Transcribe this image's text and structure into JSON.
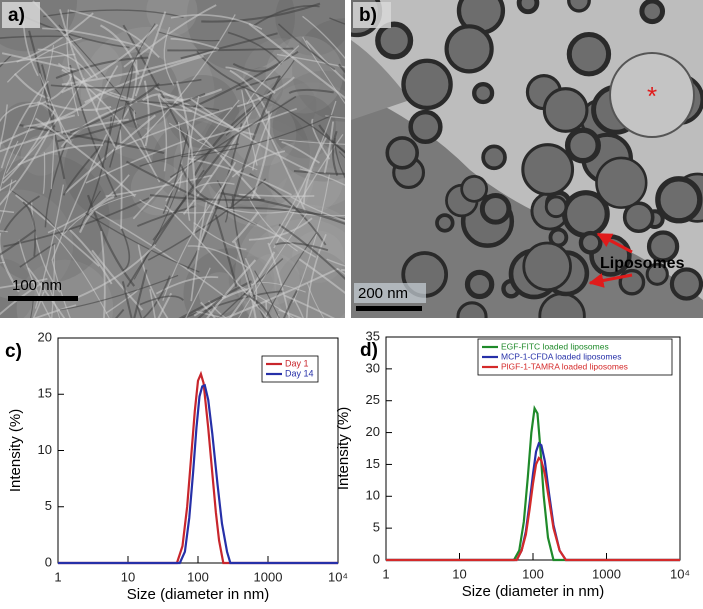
{
  "images": [
    {
      "label": "a)",
      "scale_bar": "100 nm"
    },
    {
      "label": "b)",
      "scale_bar": "200 nm",
      "annotation": "Liposomes",
      "marker": "*"
    }
  ],
  "chart_data": [
    {
      "type": "line",
      "panel_label": "c)",
      "xlabel": "Size (diameter in nm)",
      "ylabel": "Intensity (%)",
      "xscale": "log",
      "xlim": [
        1,
        10000
      ],
      "xticks": [
        1,
        10,
        100,
        1000,
        {
          "value": 10000,
          "label": "10⁴"
        }
      ],
      "ylim": [
        0,
        20
      ],
      "yticks": [
        0,
        5,
        10,
        15,
        20
      ],
      "legend": "upper right",
      "series": [
        {
          "name": "Day 1",
          "color": "#c8262c",
          "x": [
            1,
            50,
            60,
            70,
            80,
            90,
            100,
            110,
            120,
            140,
            160,
            180,
            200,
            230,
            10000
          ],
          "values": [
            0,
            0,
            1.5,
            5,
            9.5,
            13.5,
            16.2,
            16.8,
            16,
            12,
            8,
            4.5,
            2,
            0,
            0
          ]
        },
        {
          "name": "Day 14",
          "color": "#2630a8",
          "x": [
            1,
            55,
            65,
            75,
            85,
            95,
            105,
            115,
            125,
            140,
            160,
            190,
            220,
            260,
            290,
            10000
          ],
          "values": [
            0,
            0,
            1,
            4,
            8,
            12,
            14.8,
            15.7,
            15.8,
            14.5,
            11.5,
            7,
            3.5,
            1,
            0,
            0
          ]
        }
      ]
    },
    {
      "type": "line",
      "panel_label": "d)",
      "xlabel": "Size (diameter in nm)",
      "ylabel": "Intensity (%)",
      "xscale": "log",
      "xlim": [
        1,
        10000
      ],
      "xticks": [
        1,
        10,
        100,
        1000,
        {
          "value": 10000,
          "label": "10⁴"
        }
      ],
      "ylim": [
        0,
        35
      ],
      "yticks": [
        0,
        5,
        10,
        15,
        20,
        25,
        30,
        35
      ],
      "legend": "upper center",
      "series": [
        {
          "name": "EGF-FITC loaded liposomes",
          "color": "#1f8a2a",
          "x": [
            1,
            55,
            65,
            75,
            85,
            95,
            105,
            115,
            125,
            140,
            160,
            190,
            10000
          ],
          "values": [
            0,
            0,
            1.5,
            6,
            13,
            20,
            23.8,
            23,
            18,
            10,
            3.5,
            0,
            0
          ]
        },
        {
          "name": "MCP-1-CFDA loaded liposomes",
          "color": "#2630a8",
          "x": [
            1,
            60,
            70,
            80,
            90,
            100,
            110,
            120,
            130,
            145,
            165,
            190,
            230,
            280,
            10000
          ],
          "values": [
            0,
            0,
            1.5,
            4.5,
            9,
            13.5,
            17,
            18.3,
            18,
            15.5,
            10.5,
            5.5,
            1.5,
            0,
            0
          ]
        },
        {
          "name": "PlGF-1-TAMRA loaded liposomes",
          "color": "#d42a2a",
          "x": [
            1,
            60,
            70,
            80,
            90,
            100,
            110,
            120,
            130,
            145,
            165,
            190,
            230,
            280,
            10000
          ],
          "values": [
            0,
            0,
            1.5,
            4,
            8,
            12,
            15,
            16,
            15.6,
            13.5,
            9.5,
            5,
            1.5,
            0,
            0
          ]
        }
      ]
    }
  ]
}
